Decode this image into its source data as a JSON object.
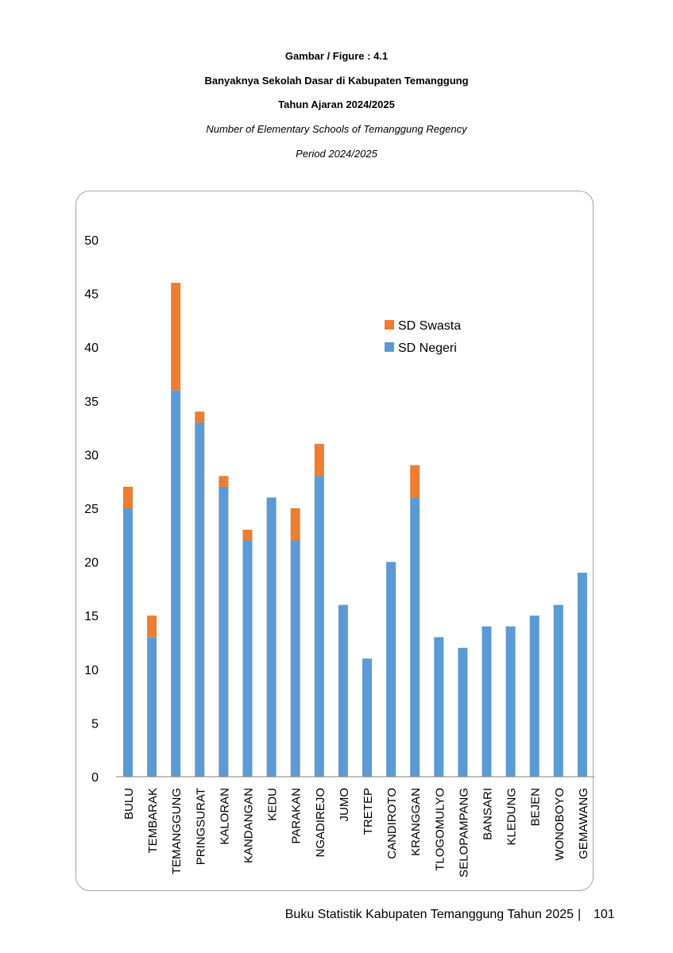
{
  "header": {
    "figure_label": "Gambar / Figure  : 4.1",
    "title_id": "Banyaknya Sekolah Dasar di Kabupaten Temanggung",
    "period_id": "Tahun Ajaran 2024/2025",
    "title_en": "Number of Elementary Schools of Temanggung Regency",
    "period_en": "Period 2024/2025"
  },
  "chart_data": {
    "type": "bar",
    "stacked": true,
    "categories": [
      "BULU",
      "TEMBARAK",
      "TEMANGGUNG",
      "PRINGSURAT",
      "KALORAN",
      "KANDANGAN",
      "KEDU",
      "PARAKAN",
      "NGADIREJO",
      "JUMO",
      "TRETEP",
      "CANDIROTO",
      "KRANGGAN",
      "TLOGOMULYO",
      "SELOPAMPANG",
      "BANSARI",
      "KLEDUNG",
      "BEJEN",
      "WONOBOYO",
      "GEMAWANG"
    ],
    "series": [
      {
        "name": "SD Negeri",
        "color": "#5b9bd5",
        "values": [
          25,
          13,
          36,
          33,
          27,
          22,
          26,
          22,
          28,
          16,
          11,
          20,
          26,
          13,
          12,
          14,
          14,
          15,
          16,
          19
        ]
      },
      {
        "name": "SD Swasta",
        "color": "#ed7d31",
        "values": [
          2,
          2,
          10,
          1,
          1,
          1,
          0,
          3,
          3,
          0,
          0,
          0,
          3,
          0,
          0,
          0,
          0,
          0,
          0,
          0
        ]
      }
    ],
    "yticks": [
      "0",
      "5",
      "10",
      "15",
      "20",
      "25",
      "30",
      "35",
      "40",
      "45",
      "50"
    ],
    "ylim": [
      0,
      50
    ],
    "legend_position": "top-right",
    "grid": false
  },
  "footer": {
    "title": "Buku Statistik Kabupaten Temanggung Tahun 2025",
    "separator": "|",
    "page": "101"
  }
}
